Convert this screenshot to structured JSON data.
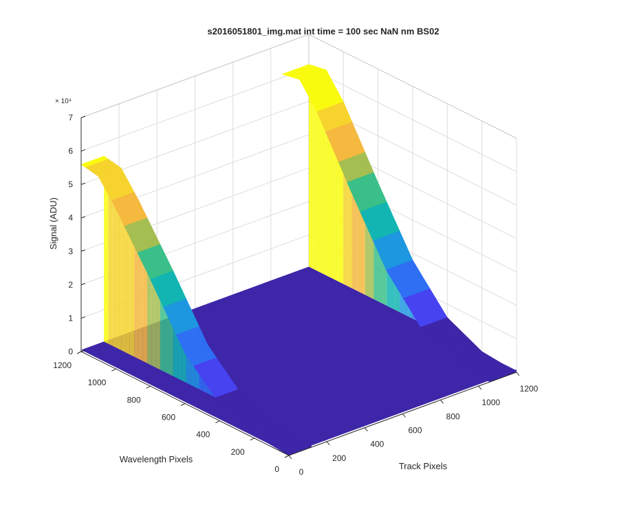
{
  "chart_data": {
    "type": "surface",
    "title": "s2016051801_img.mat int time = 100 sec  NaN nm BS02",
    "xlabel": "Track Pixels",
    "ylabel": "Wavelength Pixels",
    "zlabel": "Signal (ADU)",
    "z_exponent": "× 10⁴",
    "xlim": [
      0,
      1200
    ],
    "ylim": [
      0,
      1200
    ],
    "zlim": [
      0,
      70000
    ],
    "x_ticks": [
      "0",
      "200",
      "400",
      "600",
      "800",
      "1000",
      "1200"
    ],
    "y_ticks": [
      "0",
      "200",
      "400",
      "600",
      "800",
      "1000",
      "1200"
    ],
    "z_ticks": [
      "0",
      "1",
      "2",
      "3",
      "4",
      "5",
      "6",
      "7"
    ],
    "grid": true,
    "colormap": [
      "#3e26a8",
      "#4743f0",
      "#2e6ff4",
      "#1d97e0",
      "#12b5b1",
      "#3bbf88",
      "#a5be51",
      "#f4b93e",
      "#f6d42d",
      "#f9fb0e"
    ],
    "series": [
      {
        "x_range": [
          0,
          120
        ],
        "peak_wavelength": 1150,
        "wavelength_extent": [
          0,
          1200
        ],
        "profile": {
          "wavelength": [
            0,
            200,
            400,
            600,
            800,
            1000,
            1100,
            1200
          ],
          "signal": [
            0,
            1000,
            5000,
            15000,
            32000,
            48000,
            55000,
            56000
          ]
        }
      },
      {
        "x_range": [
          1060,
          1200
        ],
        "peak_wavelength": 1150,
        "wavelength_extent": [
          0,
          1200
        ],
        "profile": {
          "wavelength": [
            0,
            200,
            400,
            600,
            800,
            1000,
            1100,
            1200
          ],
          "signal": [
            0,
            1000,
            6000,
            18000,
            36000,
            55000,
            62000,
            61000
          ]
        }
      }
    ],
    "floor_level": 500
  }
}
